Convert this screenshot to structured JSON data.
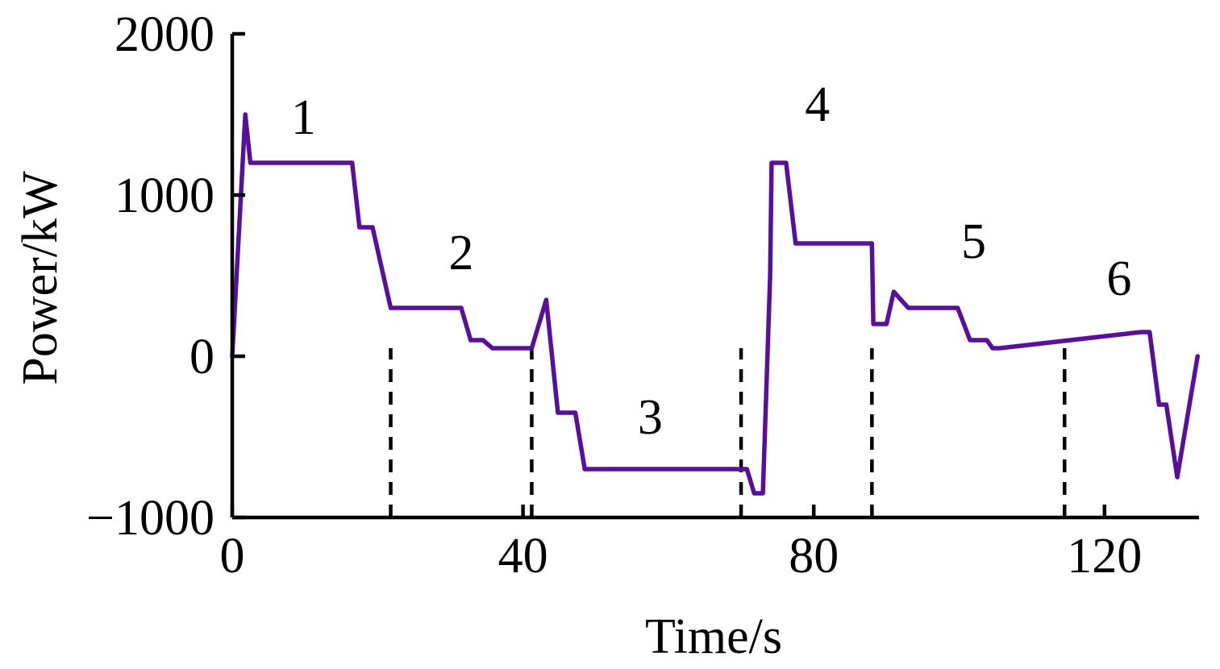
{
  "chart_data": {
    "type": "line",
    "title": "",
    "xlabel": "Time/s",
    "ylabel": "Power/kW",
    "xlim": [
      0,
      133
    ],
    "ylim": [
      -1000,
      2000
    ],
    "xticks": [
      0,
      40,
      80,
      120
    ],
    "yticks": [
      -1000,
      0,
      1000,
      2000
    ],
    "xtick_labels": [
      "0",
      "40",
      "80",
      "120"
    ],
    "ytick_labels": [
      "−1000",
      "0",
      "1000",
      "2000"
    ],
    "grid": false,
    "legend": "none",
    "series": [
      {
        "color": "#5a0f9b",
        "x": [
          0,
          1.8,
          2.5,
          16.5,
          17.5,
          19.3,
          21.8,
          31.5,
          32.8,
          34.5,
          35.8,
          41.2,
          43.2,
          44.8,
          47.2,
          48.5,
          70.8,
          71.8,
          73,
          74,
          74.2,
          76.2,
          77.5,
          88,
          88.2,
          90,
          91,
          93,
          93.8,
          99.8,
          101.5,
          103.8,
          104.6,
          105.6,
          125,
          126.2,
          127.5,
          128.5,
          130,
          132.8
        ],
        "y": [
          0,
          1500,
          1200,
          1200,
          800,
          800,
          300,
          300,
          100,
          100,
          50,
          50,
          350,
          -350,
          -350,
          -700,
          -700,
          -850,
          -850,
          500,
          1200,
          1200,
          700,
          700,
          200,
          200,
          400,
          300,
          300,
          300,
          100,
          100,
          50,
          50,
          150,
          150,
          -300,
          -300,
          -750,
          0
        ]
      }
    ],
    "boundaries": [
      21.8,
      41.2,
      70,
      88,
      114.5
    ],
    "segment_labels": [
      {
        "text": "1",
        "x": 9.8,
        "y": 1380
      },
      {
        "text": "2",
        "x": 31.5,
        "y": 540
      },
      {
        "text": "3",
        "x": 57.5,
        "y": -480
      },
      {
        "text": "4",
        "x": 80.5,
        "y": 1460
      },
      {
        "text": "5",
        "x": 102,
        "y": 610
      },
      {
        "text": "6",
        "x": 122,
        "y": 380
      }
    ]
  }
}
